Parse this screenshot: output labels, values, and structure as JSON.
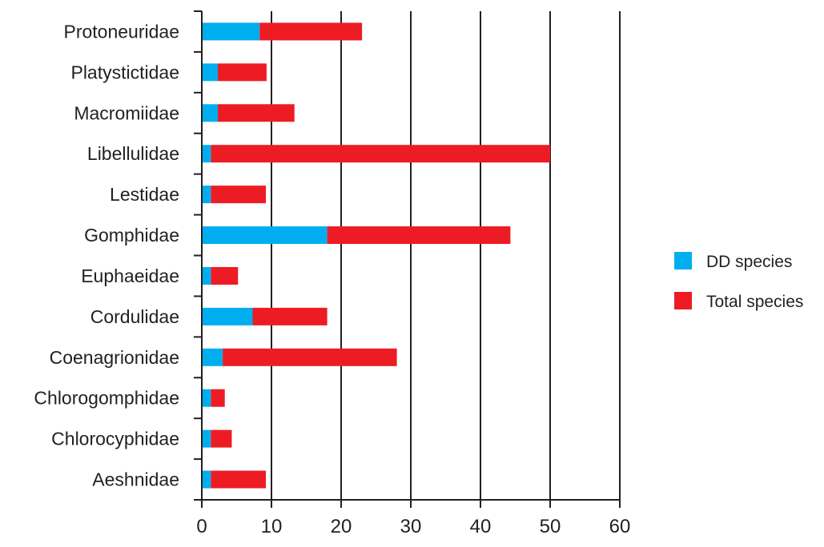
{
  "chart_data": {
    "type": "bar",
    "orientation": "horizontal",
    "stacked": true,
    "categories": [
      "Protoneuridae",
      "Platystictidae",
      "Macromiidae",
      "Libellulidae",
      "Lestidae",
      "Gomphidae",
      "Euphaeidae",
      "Cordulidae",
      "Coenagrionidae",
      "Chlorogomphidae",
      "Chlorocyphidae",
      "Aeshnidae"
    ],
    "series": [
      {
        "name": "DD species",
        "color": "#00aeef",
        "values": [
          8.3,
          2.3,
          2.3,
          1.3,
          1.3,
          18,
          1.3,
          7.3,
          3,
          1.3,
          1.3,
          1.3
        ]
      },
      {
        "name": "Total species",
        "color": "#ed1c24",
        "values": [
          14.7,
          7,
          11,
          48.7,
          7.9,
          26.3,
          3.9,
          10.7,
          25,
          2,
          3,
          7.9
        ]
      }
    ],
    "xlim": [
      0,
      60
    ],
    "xticks": [
      0,
      10,
      20,
      30,
      40,
      50,
      60
    ],
    "grid": "vertical",
    "legend": "right",
    "title": "",
    "xlabel": "",
    "ylabel": ""
  }
}
